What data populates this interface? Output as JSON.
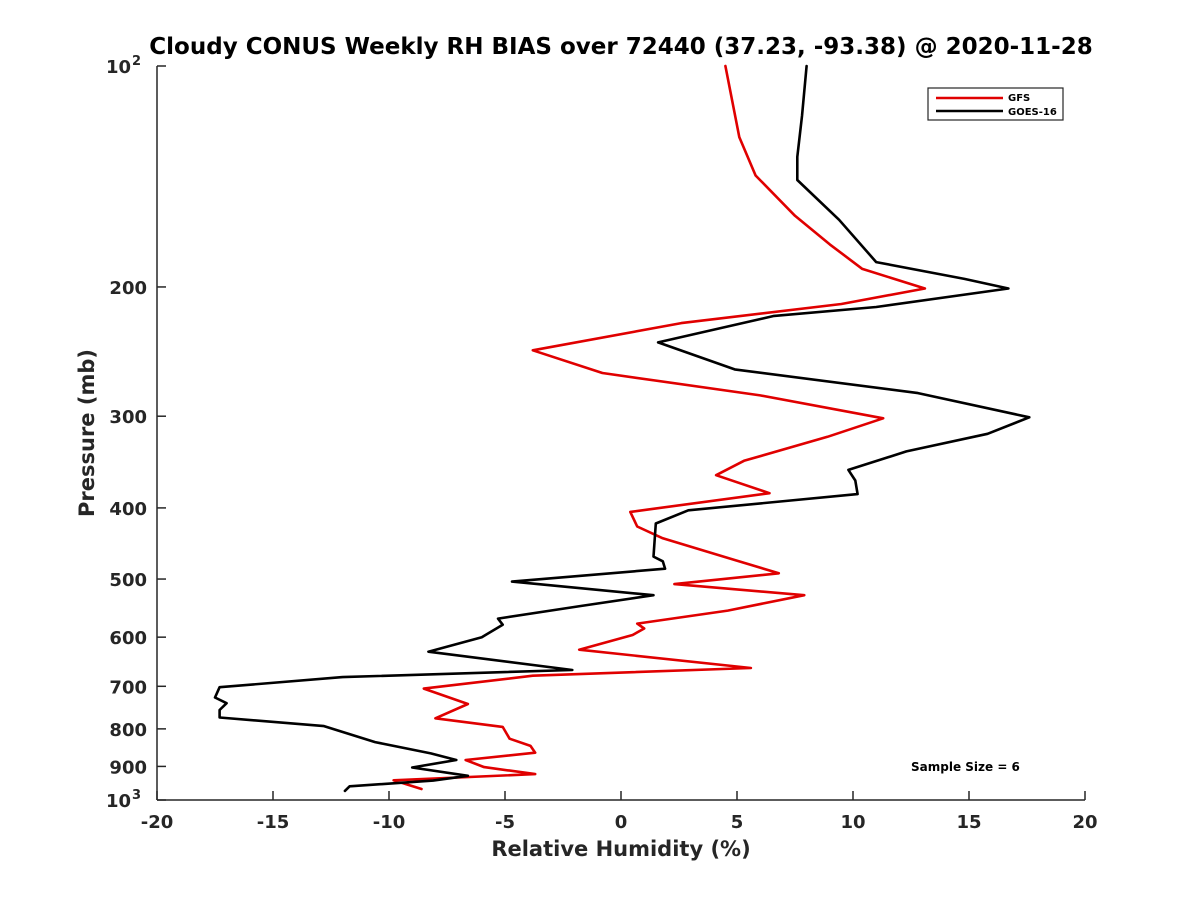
{
  "chart_data": {
    "type": "line",
    "title": "Cloudy CONUS Weekly RH BIAS over 72440 (37.23, -93.38) @ 2020-11-28",
    "xlabel": "Relative Humidity (%)",
    "ylabel": "Pressure (mb)",
    "xlim": [
      -20,
      20
    ],
    "ylim": [
      100,
      1000
    ],
    "yscale": "log",
    "y_reversed": true,
    "x_ticks": [
      -20,
      -15,
      -10,
      -5,
      0,
      5,
      10,
      15,
      20
    ],
    "x_tick_labels": [
      "-20",
      "-15",
      "-10",
      "-5",
      "0",
      "5",
      "10",
      "15",
      "20"
    ],
    "y_ticks": [
      {
        "value": 100,
        "base": "10",
        "exp": "2"
      },
      {
        "value": 200,
        "label": "200"
      },
      {
        "value": 300,
        "label": "300"
      },
      {
        "value": 400,
        "label": "400"
      },
      {
        "value": 500,
        "label": "500"
      },
      {
        "value": 600,
        "label": "600"
      },
      {
        "value": 700,
        "label": "700"
      },
      {
        "value": 800,
        "label": "800"
      },
      {
        "value": 900,
        "label": "900"
      },
      {
        "value": 1000,
        "base": "10",
        "exp": "3"
      }
    ],
    "grid": false,
    "legend_position": "top-right",
    "annotation": "Sample Size = 6",
    "series": [
      {
        "name": "GFS",
        "color": "#e00000",
        "points": [
          [
            4.5,
            100
          ],
          [
            5.1,
            125
          ],
          [
            5.8,
            141
          ],
          [
            7.5,
            160
          ],
          [
            9.0,
            175
          ],
          [
            10.4,
            189
          ],
          [
            13.1,
            201
          ],
          [
            9.5,
            211
          ],
          [
            2.6,
            224
          ],
          [
            -3.8,
            244
          ],
          [
            -0.8,
            262
          ],
          [
            6.0,
            281
          ],
          [
            11.3,
            302
          ],
          [
            8.9,
            320
          ],
          [
            5.3,
            345
          ],
          [
            4.1,
            361
          ],
          [
            6.4,
            382
          ],
          [
            0.4,
            405
          ],
          [
            0.7,
            424
          ],
          [
            1.8,
            440
          ],
          [
            4.9,
            471
          ],
          [
            6.8,
            491
          ],
          [
            2.3,
            508
          ],
          [
            7.9,
            526
          ],
          [
            4.6,
            552
          ],
          [
            0.7,
            575
          ],
          [
            1.0,
            584
          ],
          [
            0.5,
            596
          ],
          [
            -1.8,
            624
          ],
          [
            5.6,
            661
          ],
          [
            -3.8,
            677
          ],
          [
            -8.5,
            705
          ],
          [
            -6.6,
            740
          ],
          [
            -8.0,
            774
          ],
          [
            -5.1,
            795
          ],
          [
            -4.8,
            825
          ],
          [
            -3.9,
            844
          ],
          [
            -3.7,
            862
          ],
          [
            -6.7,
            882
          ],
          [
            -5.9,
            902
          ],
          [
            -3.7,
            922
          ],
          [
            -9.8,
            940
          ],
          [
            -8.6,
            966
          ]
        ]
      },
      {
        "name": "GOES-16",
        "color": "#000000",
        "points": [
          [
            8.0,
            100
          ],
          [
            7.8,
            117
          ],
          [
            7.6,
            133
          ],
          [
            7.6,
            143
          ],
          [
            9.4,
            162
          ],
          [
            11.0,
            185
          ],
          [
            14.8,
            195
          ],
          [
            16.7,
            201
          ],
          [
            11.0,
            213
          ],
          [
            6.6,
            219
          ],
          [
            1.6,
            238
          ],
          [
            4.9,
            259
          ],
          [
            12.8,
            279
          ],
          [
            17.6,
            301
          ],
          [
            15.8,
            317
          ],
          [
            12.3,
            335
          ],
          [
            9.8,
            355
          ],
          [
            10.1,
            367
          ],
          [
            10.2,
            383
          ],
          [
            2.9,
            403
          ],
          [
            1.5,
            420
          ],
          [
            1.4,
            466
          ],
          [
            1.8,
            473
          ],
          [
            1.9,
            484
          ],
          [
            -4.7,
            504
          ],
          [
            1.4,
            526
          ],
          [
            -1.7,
            544
          ],
          [
            -5.3,
            566
          ],
          [
            -5.1,
            577
          ],
          [
            -6.0,
            600
          ],
          [
            -8.3,
            628
          ],
          [
            -2.1,
            665
          ],
          [
            -12.0,
            680
          ],
          [
            -17.3,
            702
          ],
          [
            -17.5,
            725
          ],
          [
            -17.0,
            738
          ],
          [
            -17.3,
            754
          ],
          [
            -17.3,
            772
          ],
          [
            -12.8,
            793
          ],
          [
            -10.6,
            834
          ],
          [
            -8.2,
            864
          ],
          [
            -7.1,
            882
          ],
          [
            -9.0,
            903
          ],
          [
            -6.6,
            927
          ],
          [
            -8.1,
            941
          ],
          [
            -11.7,
            958
          ],
          [
            -11.9,
            972
          ]
        ]
      }
    ]
  }
}
